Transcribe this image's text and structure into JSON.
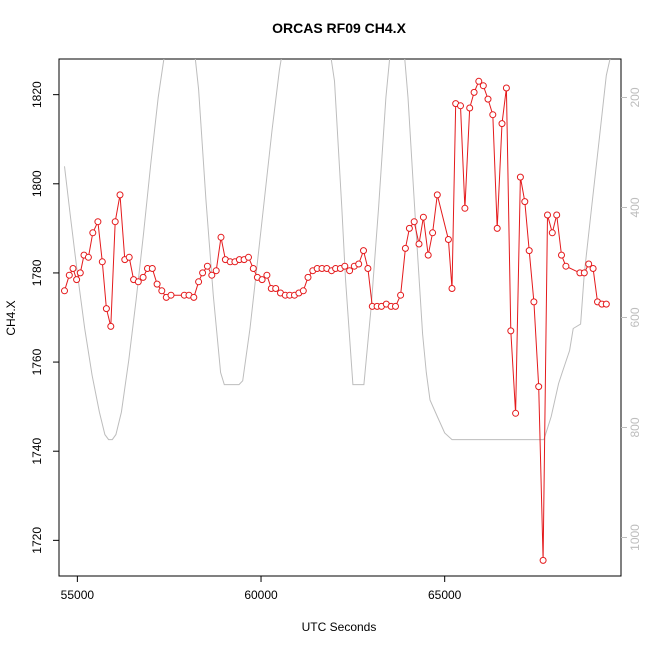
{
  "chart_data": {
    "type": "line",
    "title": "ORCAS RF09 CH4.X",
    "xlabel": "UTC Seconds",
    "ylabel": "CH4.X",
    "xlim": [
      54500,
      69800
    ],
    "ylim": [
      1712,
      1828
    ],
    "y2lim": [
      1070,
      130
    ],
    "x_ticks": [
      55000,
      60000,
      65000
    ],
    "y_ticks": [
      1720,
      1740,
      1760,
      1780,
      1800,
      1820
    ],
    "y2_ticks": [
      200,
      400,
      600,
      800,
      1000
    ],
    "grid": false,
    "series": [
      {
        "role": "primary",
        "color": "#e41a1c",
        "marker": "circle",
        "x": [
          54650,
          54780,
          54880,
          54980,
          55080,
          55180,
          55300,
          55420,
          55560,
          55680,
          55790,
          55910,
          56030,
          56160,
          56290,
          56410,
          56530,
          56660,
          56790,
          56910,
          57040,
          57170,
          57300,
          57420,
          57550,
          57910,
          58040,
          58170,
          58300,
          58410,
          58540,
          58660,
          58780,
          58910,
          59030,
          59160,
          59290,
          59410,
          59540,
          59660,
          59790,
          59900,
          60030,
          60160,
          60280,
          60400,
          60530,
          60660,
          60780,
          60910,
          61030,
          61150,
          61280,
          61410,
          61530,
          61660,
          61790,
          61920,
          62030,
          62160,
          62280,
          62410,
          62540,
          62660,
          62790,
          62910,
          63030,
          63160,
          63280,
          63410,
          63540,
          63660,
          63800,
          63930,
          64040,
          64170,
          64300,
          64420,
          64550,
          64670,
          64800,
          65100,
          65200,
          65300,
          65430,
          65550,
          65680,
          65800,
          65930,
          66050,
          66180,
          66310,
          66430,
          66560,
          66680,
          66800,
          66930,
          67060,
          67180,
          67300,
          67430,
          67560,
          67680,
          67800,
          67930,
          68050,
          68180,
          68300,
          68680,
          68800,
          68920,
          69040,
          69160,
          69280,
          69400
        ],
        "y": [
          1776.0,
          1779.5,
          1781.0,
          1778.5,
          1780.0,
          1784.0,
          1783.5,
          1789.0,
          1791.5,
          1782.5,
          1772.0,
          1768.0,
          1791.5,
          1797.5,
          1783.0,
          1783.5,
          1778.5,
          1778.0,
          1779.0,
          1781.0,
          1781.0,
          1777.5,
          1776.0,
          1774.5,
          1775.0,
          1775.0,
          1775.0,
          1774.5,
          1778.0,
          1780.0,
          1781.5,
          1779.5,
          1780.5,
          1788.0,
          1783.0,
          1782.5,
          1782.5,
          1783.0,
          1783.0,
          1783.5,
          1781.0,
          1779.0,
          1778.5,
          1779.5,
          1776.5,
          1776.5,
          1775.5,
          1775.0,
          1775.0,
          1775.0,
          1775.5,
          1776.0,
          1779.0,
          1780.5,
          1781.0,
          1781.0,
          1781.0,
          1780.5,
          1781.0,
          1781.0,
          1781.5,
          1780.5,
          1781.5,
          1782.0,
          1785.0,
          1781.0,
          1772.5,
          1772.5,
          1772.5,
          1773.0,
          1772.5,
          1772.5,
          1775.0,
          1785.5,
          1790.0,
          1791.5,
          1786.5,
          1792.5,
          1784.0,
          1789.0,
          1797.5,
          1787.5,
          1776.5,
          1818.0,
          1817.5,
          1794.5,
          1817.0,
          1820.5,
          1823.0,
          1822.0,
          1819.0,
          1815.5,
          1790.0,
          1813.5,
          1821.5,
          1767.0,
          1748.5,
          1801.5,
          1796.0,
          1785.0,
          1773.5,
          1754.5,
          1715.5,
          1793.0,
          1789.0,
          1793.0,
          1784.0,
          1781.5,
          1780.0,
          1780.0,
          1782.0,
          1781.0,
          1773.5,
          1773.0,
          1773.0
        ]
      },
      {
        "role": "secondary",
        "color": "#bdbdbd",
        "marker": "none",
        "x": [
          54650,
          54800,
          55000,
          55200,
          55400,
          55600,
          55750,
          55850,
          55950,
          56050,
          56200,
          56400,
          56600,
          56800,
          57000,
          57200,
          57400,
          57500,
          58100,
          58300,
          58500,
          58700,
          58900,
          59000,
          59200,
          59400,
          59500,
          59700,
          59900,
          60100,
          60300,
          60500,
          60700,
          60900,
          61100,
          61200,
          61800,
          62000,
          62200,
          62300,
          62500,
          62700,
          62800,
          63000,
          63200,
          63400,
          63600,
          63800,
          64000,
          64200,
          64400,
          64500,
          64600,
          64800,
          65000,
          65200,
          65400,
          66000,
          66500,
          67000,
          67500,
          67700,
          67900,
          68100,
          68200,
          68400,
          68500,
          68700,
          68800,
          69000,
          69200,
          69400,
          69500
        ],
        "y": [
          325,
          410,
          520,
          620,
          705,
          772,
          813,
          822,
          822,
          813,
          772,
          677,
          568,
          448,
          320,
          200,
          110,
          60,
          60,
          185,
          385,
          560,
          700,
          722,
          722,
          722,
          715,
          620,
          500,
          380,
          260,
          150,
          70,
          50,
          60,
          80,
          80,
          170,
          400,
          530,
          722,
          722,
          722,
          580,
          400,
          200,
          60,
          40,
          200,
          420,
          630,
          700,
          750,
          780,
          810,
          822,
          822,
          822,
          822,
          822,
          822,
          822,
          780,
          720,
          700,
          660,
          620,
          612,
          520,
          400,
          280,
          160,
          130
        ]
      }
    ]
  }
}
